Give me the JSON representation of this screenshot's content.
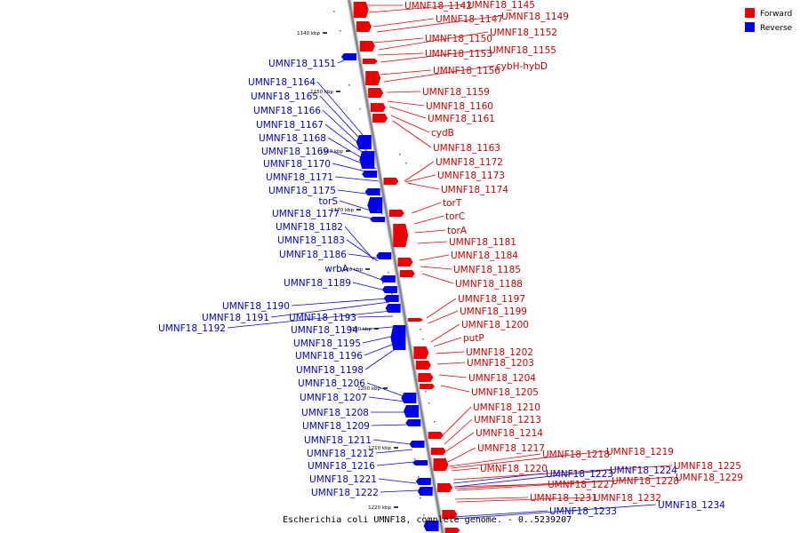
{
  "caption": "Escherichia coli UMNF18, complete genome. - 0..5239207",
  "legend": [
    {
      "label": "Forward",
      "color": "#ee0000"
    },
    {
      "label": "Reverse",
      "color": "#0000ee"
    }
  ],
  "colors": {
    "forward": "#ee0000",
    "reverse": "#0000ee",
    "backbone": "#888888"
  },
  "ticks": [
    "1140 kbp",
    "1150 kbp",
    "1160 kbp",
    "1170 kbp",
    "1180 kbp",
    "1190 kbp",
    "1200 kbp",
    "1210 kbp",
    "1220 kbp"
  ],
  "forward_labels": [
    "UMNF18_1142",
    "UMNF18_1145",
    "UMNF18_1147",
    "UMNF18_1149",
    "UMNF18_1150",
    "UMNF18_1152",
    "UMNF18_1153",
    "UMNF18_1155",
    "UMNF18_1156",
    "cybH-hybD",
    "UMNF18_1159",
    "UMNF18_1160",
    "UMNF18_1161",
    "cydB",
    "UMNF18_1163",
    "UMNF18_1172",
    "UMNF18_1173",
    "UMNF18_1174",
    "torT",
    "torC",
    "torA",
    "UMNF18_1181",
    "UMNF18_1184",
    "UMNF18_1185",
    "UMNF18_1188",
    "UMNF18_1197",
    "UMNF18_1199",
    "UMNF18_1200",
    "putP",
    "UMNF18_1202",
    "UMNF18_1203",
    "UMNF18_1204",
    "UMNF18_1205",
    "UMNF18_1210",
    "UMNF18_1213",
    "UMNF18_1214",
    "UMNF18_1217",
    "UMNF18_1218",
    "UMNF18_1219",
    "UMNF18_1220",
    "UMNF18_1225",
    "UMNF18_1227",
    "UMNF18_1228",
    "UMNF18_1229",
    "UMNF18_1231",
    "UMNF18_1232"
  ],
  "reverse_labels": [
    "UMNF18_1151",
    "UMNF18_1164",
    "UMNF18_1165",
    "UMNF18_1166",
    "UMNF18_1167",
    "UMNF18_1168",
    "UMNF18_1169",
    "UMNF18_1170",
    "UMNF18_1171",
    "UMNF18_1175",
    "torS",
    "UMNF18_1177",
    "UMNF18_1182",
    "UMNF18_1183",
    "UMNF18_1186",
    "wrbA",
    "UMNF18_1189",
    "UMNF18_1190",
    "UMNF18_1191",
    "UMNF18_1192",
    "UMNF18_1193",
    "UMNF18_1194",
    "UMNF18_1195",
    "UMNF18_1196",
    "UMNF18_1198",
    "UMNF18_1206",
    "UMNF18_1207",
    "UMNF18_1208",
    "UMNF18_1209",
    "UMNF18_1211",
    "UMNF18_1212",
    "UMNF18_1216",
    "UMNF18_1221",
    "UMNF18_1222",
    "UMNF18_1223",
    "UMNF18_1224",
    "UMNF18_1233",
    "UMNF18_1234"
  ]
}
